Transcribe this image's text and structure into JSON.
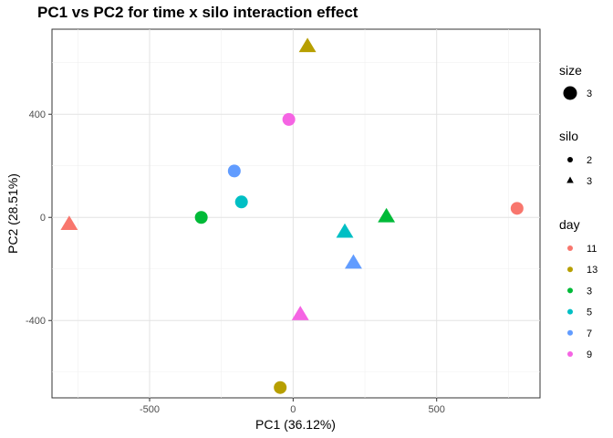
{
  "chart_data": {
    "type": "scatter",
    "title": "PC1 vs PC2 for time x silo interaction effect",
    "xlabel": "PC1 (36.12%)",
    "ylabel": "PC2 (28.51%)",
    "xlim": [
      -840,
      860
    ],
    "ylim": [
      -700,
      730
    ],
    "x_ticks": [
      -500,
      0,
      500
    ],
    "x_tick_labels": [
      "-500",
      "0",
      "500"
    ],
    "y_ticks": [
      -400,
      0,
      400
    ],
    "y_tick_labels": [
      "-400",
      "0",
      "400"
    ],
    "grid": true,
    "legend_position": "right",
    "legends": {
      "size": {
        "title": "size",
        "entries": [
          "3"
        ]
      },
      "silo": {
        "title": "silo",
        "entries": [
          {
            "label": "2",
            "shape": "circle"
          },
          {
            "label": "3",
            "shape": "triangle"
          }
        ]
      },
      "day": {
        "title": "day",
        "entries": [
          {
            "label": "11",
            "color": "#F8766D"
          },
          {
            "label": "13",
            "color": "#B79F00"
          },
          {
            "label": "3",
            "color": "#00BA38"
          },
          {
            "label": "5",
            "color": "#00BFC4"
          },
          {
            "label": "7",
            "color": "#619CFF"
          },
          {
            "label": "9",
            "color": "#F564E3"
          }
        ]
      }
    },
    "points": [
      {
        "x": 780,
        "y": 35,
        "day": "11",
        "silo": "2"
      },
      {
        "x": -780,
        "y": -25,
        "day": "11",
        "silo": "3"
      },
      {
        "x": -45,
        "y": -660,
        "day": "13",
        "silo": "2"
      },
      {
        "x": 50,
        "y": 665,
        "day": "13",
        "silo": "3"
      },
      {
        "x": -320,
        "y": 0,
        "day": "3",
        "silo": "2"
      },
      {
        "x": 325,
        "y": 5,
        "day": "3",
        "silo": "3"
      },
      {
        "x": -180,
        "y": 60,
        "day": "5",
        "silo": "2"
      },
      {
        "x": 180,
        "y": -55,
        "day": "5",
        "silo": "3"
      },
      {
        "x": -205,
        "y": 180,
        "day": "7",
        "silo": "2"
      },
      {
        "x": 210,
        "y": -175,
        "day": "7",
        "silo": "3"
      },
      {
        "x": -15,
        "y": 380,
        "day": "9",
        "silo": "2"
      },
      {
        "x": 25,
        "y": -375,
        "day": "9",
        "silo": "3"
      }
    ]
  }
}
